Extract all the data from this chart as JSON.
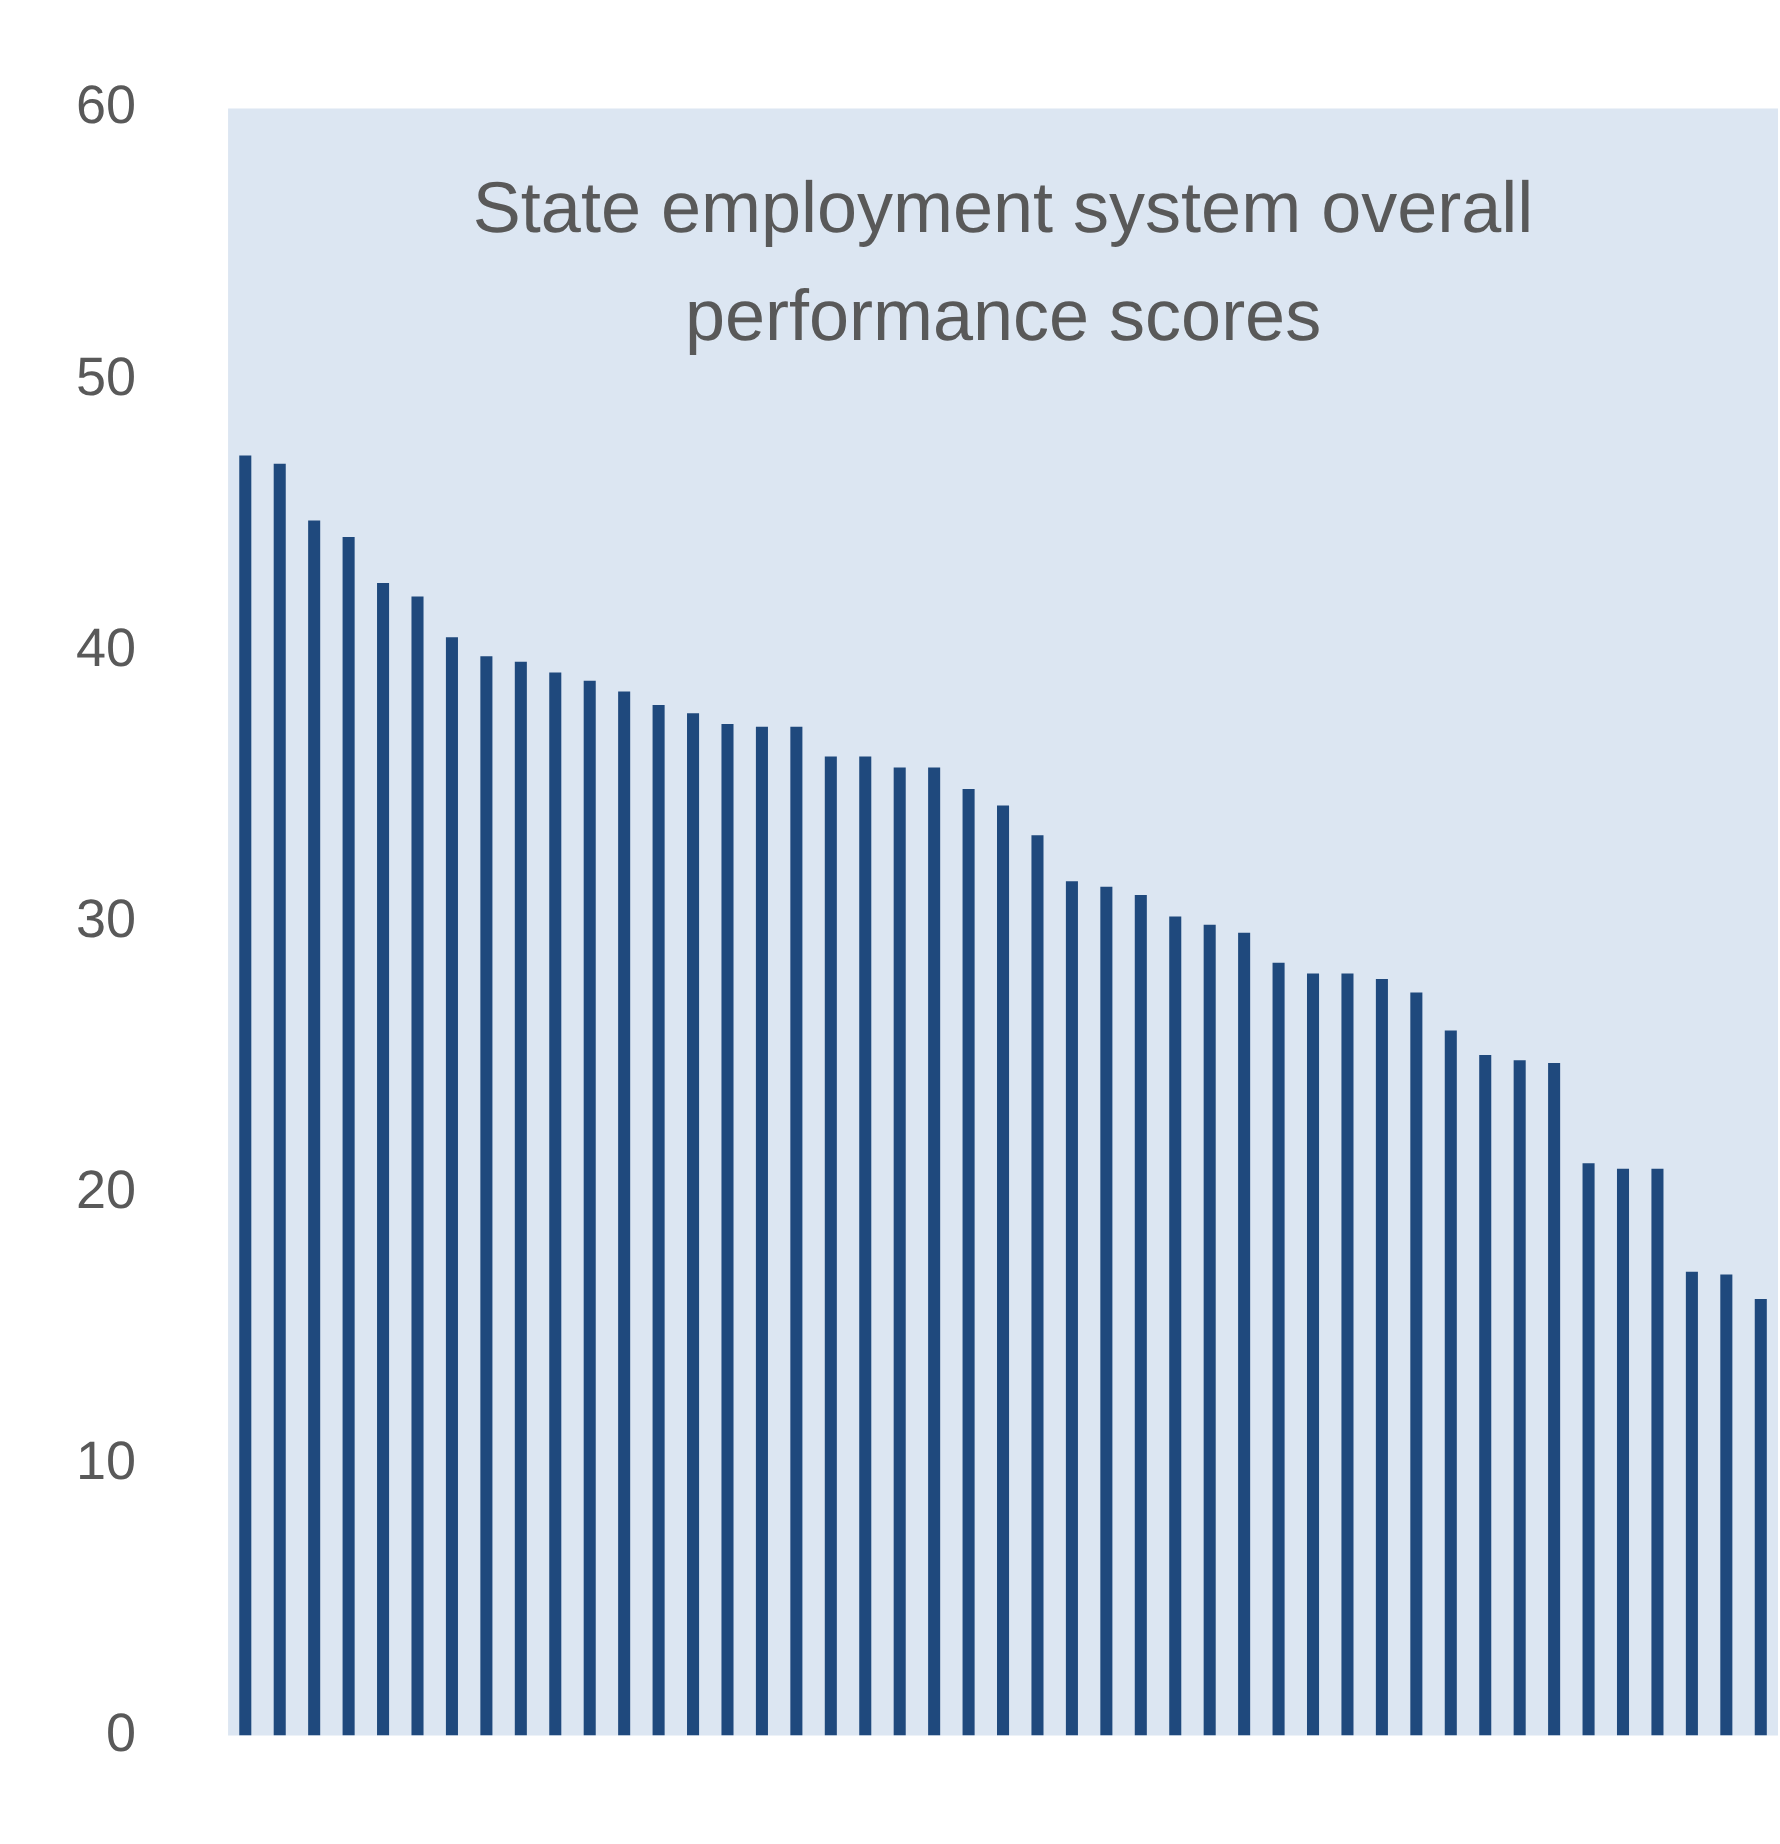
{
  "chart_data": {
    "type": "bar",
    "title": "State employment system overall performance scores",
    "categories": [
      null,
      null,
      null,
      null,
      null,
      null,
      null,
      null,
      null,
      null,
      null,
      null,
      null,
      null,
      null,
      null,
      null,
      null,
      null,
      null,
      null,
      null,
      null,
      null,
      null,
      null,
      null,
      null,
      null,
      null,
      null,
      null,
      null,
      null,
      null,
      null,
      null,
      null,
      null,
      null,
      null,
      null,
      null,
      null,
      null
    ],
    "values": [
      47.2,
      46.9,
      44.8,
      44.2,
      42.5,
      42.0,
      40.5,
      39.8,
      39.6,
      39.2,
      38.9,
      38.5,
      38.0,
      37.7,
      37.3,
      37.2,
      37.2,
      36.1,
      36.1,
      35.7,
      35.7,
      34.9,
      34.3,
      33.2,
      31.5,
      31.3,
      31.0,
      30.2,
      29.9,
      29.6,
      28.5,
      28.1,
      28.1,
      27.9,
      27.4,
      26.0,
      25.1,
      24.9,
      24.8,
      21.1,
      20.9,
      20.9,
      17.1,
      17.0,
      16.1
    ],
    "color": "#1f497d",
    "ylim": [
      0,
      60
    ],
    "yticks": [
      0,
      10,
      20,
      30,
      40,
      50,
      60
    ],
    "grid": false,
    "legend": false,
    "tick_labels": "y"
  }
}
